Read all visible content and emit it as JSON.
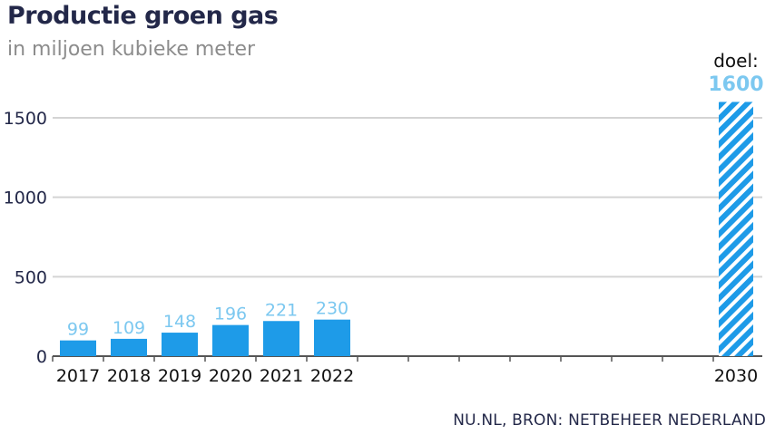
{
  "title": "Productie groen gas",
  "subtitle": "in miljoen kubieke meter",
  "source": "NU.NL, BRON: NETBEHEER NEDERLAND",
  "colors": {
    "bar": "#1e9be8",
    "label": "#7cc8f0",
    "axis": "#555555",
    "grid": "#d4d4d4",
    "text": "#232849"
  },
  "chart_data": {
    "type": "bar",
    "title": "Productie groen gas",
    "subtitle": "in miljoen kubieke meter",
    "categories": [
      "2017",
      "2018",
      "2019",
      "2020",
      "2021",
      "2022",
      "2030"
    ],
    "values": [
      99,
      109,
      148,
      196,
      221,
      230,
      1600
    ],
    "data_labels": [
      "99",
      "109",
      "148",
      "196",
      "221",
      "230",
      ""
    ],
    "yticks": [
      0,
      500,
      1000,
      1500
    ],
    "ylim": [
      0,
      1600
    ],
    "grid": true,
    "target": {
      "category": "2030",
      "label": "doel:",
      "value_label": "1600",
      "value": 1600,
      "style": "hatched"
    }
  }
}
